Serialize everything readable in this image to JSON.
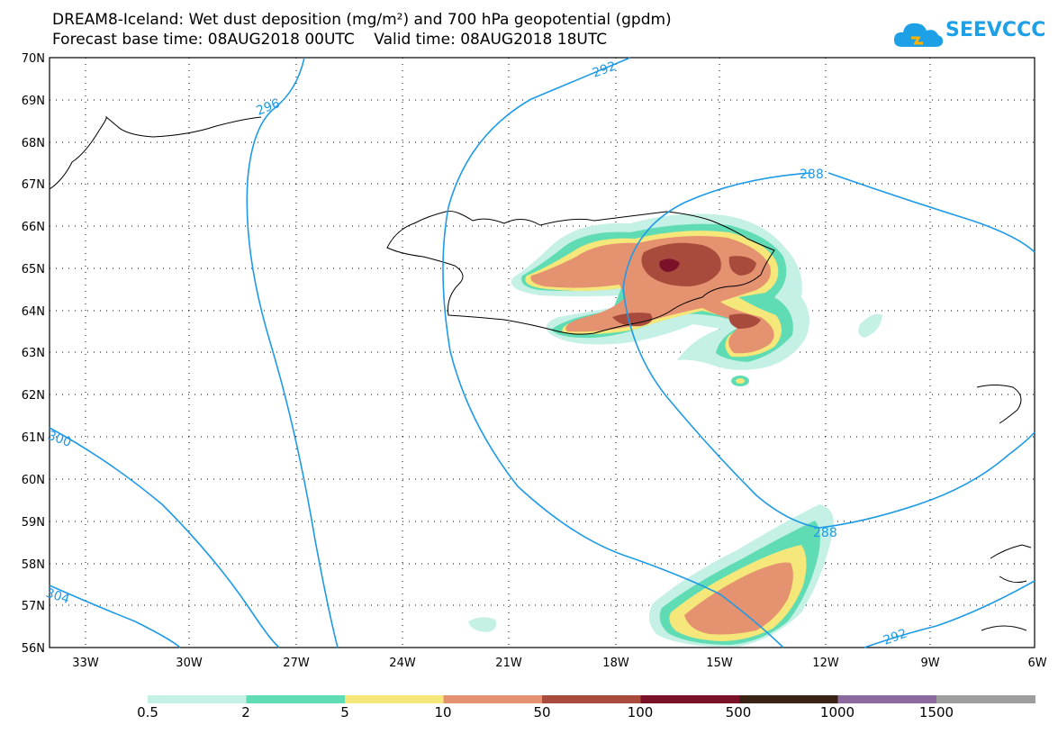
{
  "title": {
    "line1": "DREAM8-Iceland: Wet dust deposition (mg/m²) and 700 hPa geopotential (gpdm)",
    "line2": "Forecast base time: 08AUG2018 00UTC    Valid time: 08AUG2018 18UTC"
  },
  "logo": {
    "text": "SEEVCCC",
    "icon": "cloud-logo-icon",
    "color": "#1ea0e6"
  },
  "map": {
    "lat_labels": [
      "70N",
      "69N",
      "68N",
      "67N",
      "66N",
      "65N",
      "64N",
      "63N",
      "62N",
      "61N",
      "60N",
      "59N",
      "58N",
      "57N",
      "56N"
    ],
    "lon_labels": [
      "33W",
      "30W",
      "27W",
      "24W",
      "21W",
      "18W",
      "15W",
      "12W",
      "9W",
      "6W"
    ],
    "contour_color": "#1e9ae6",
    "contour_labels": [
      "296",
      "292",
      "288",
      "288",
      "292",
      "300",
      "304"
    ]
  },
  "legend": {
    "colors": [
      "#c4f0e6",
      "#5fdcb4",
      "#f5e77a",
      "#e59270",
      "#a84b3c",
      "#7a1129",
      "#3a2314",
      "#8c6aa0",
      "#9e9e9e"
    ],
    "labels": [
      "0.5",
      "2",
      "5",
      "10",
      "50",
      "100",
      "500",
      "1000",
      "1500"
    ]
  }
}
